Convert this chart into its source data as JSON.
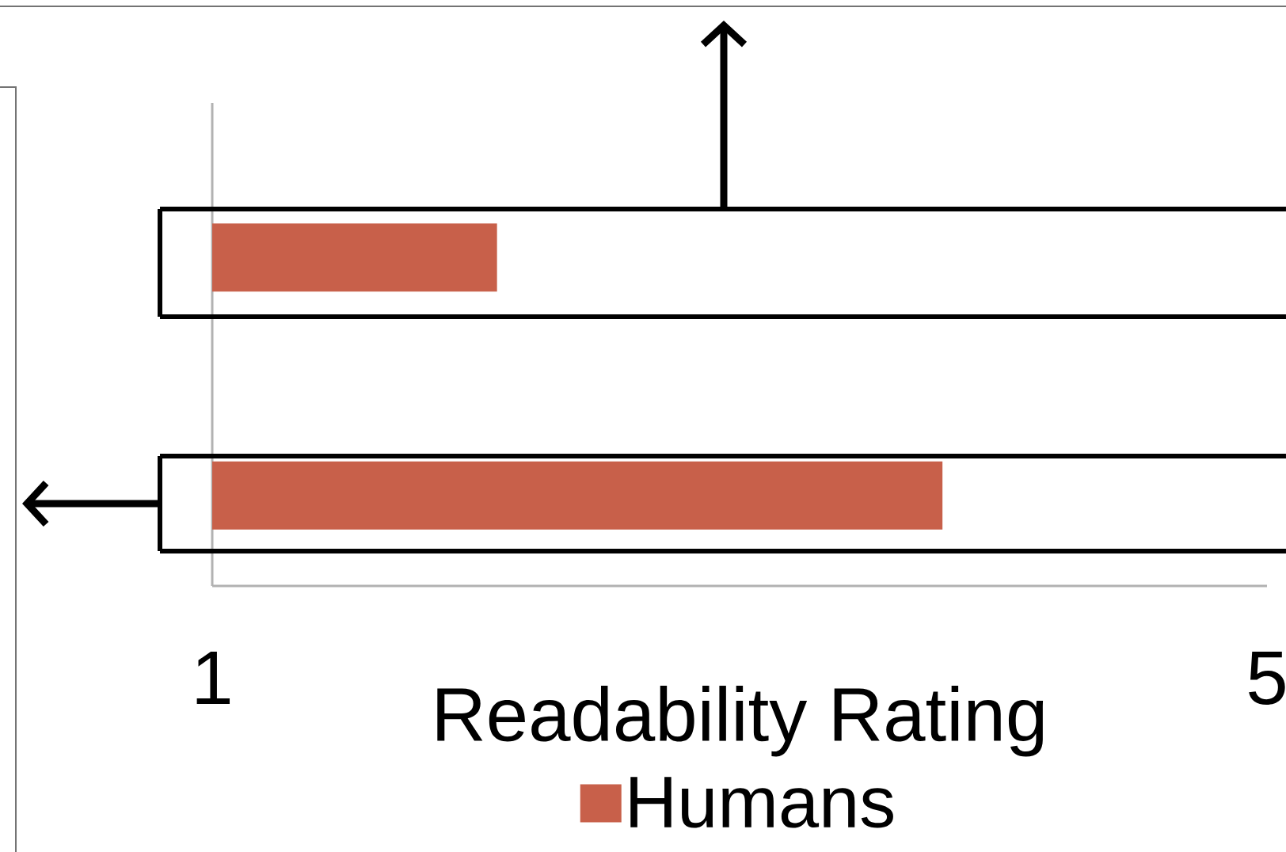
{
  "chart_data": {
    "type": "bar",
    "orientation": "horizontal",
    "categories": [
      null,
      null
    ],
    "series": [
      {
        "name": "Humans",
        "color": "#c8604a",
        "values": [
          2.08,
          3.77
        ]
      }
    ],
    "xlim": [
      1,
      5
    ],
    "xticks": [
      1,
      5
    ],
    "xlabel": "Readability Rating",
    "legend": "bottom"
  }
}
